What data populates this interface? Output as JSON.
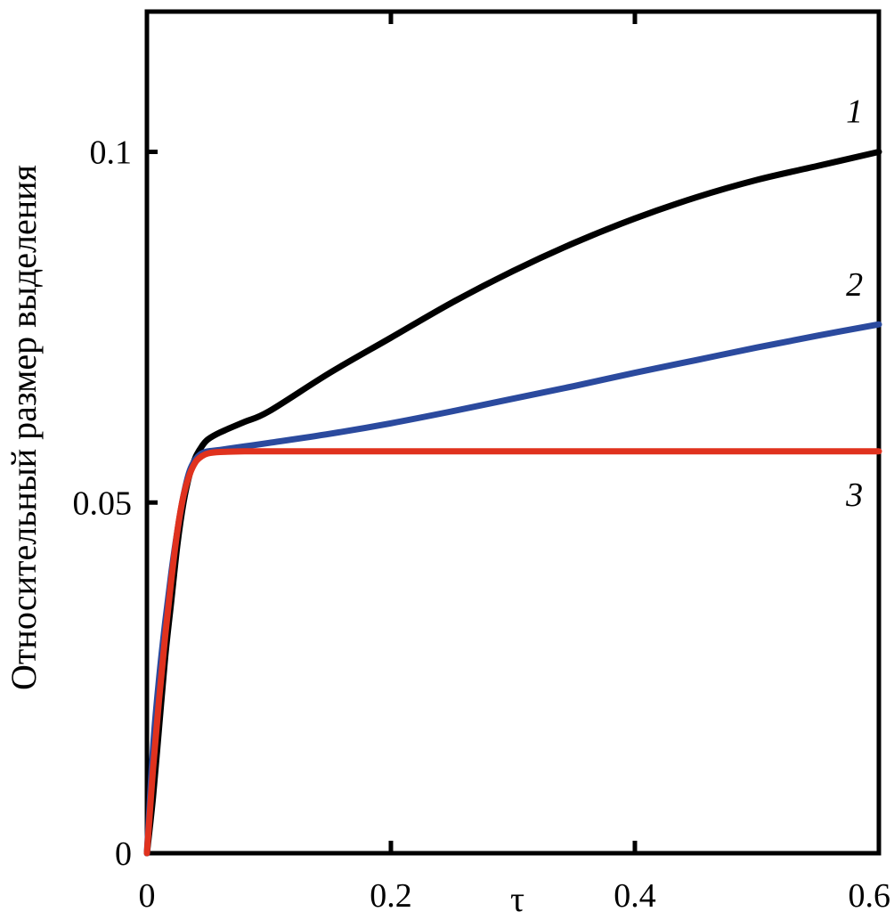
{
  "chart_data": {
    "type": "line",
    "title": "",
    "xlabel": "τ",
    "ylabel": "Относительный размер выделения",
    "xlim": [
      0,
      0.6
    ],
    "ylim": [
      0,
      0.12
    ],
    "x_ticks": [
      {
        "value": 0,
        "label": "0"
      },
      {
        "value": 0.2,
        "label": "0.2"
      },
      {
        "value": 0.4,
        "label": "0.4"
      },
      {
        "value": 0.6,
        "label": "0.6"
      }
    ],
    "y_ticks": [
      {
        "value": 0,
        "label": "0"
      },
      {
        "value": 0.05,
        "label": "0.05"
      },
      {
        "value": 0.1,
        "label": "0.1"
      }
    ],
    "grid": false,
    "legend": "none",
    "series": [
      {
        "name": "1",
        "color": "#000000",
        "label_anchor": [
          0.58,
          0.1042
        ],
        "x": [
          0,
          0.005,
          0.01,
          0.015,
          0.02,
          0.025,
          0.03,
          0.035,
          0.04,
          0.045,
          0.05,
          0.06,
          0.08,
          0.1,
          0.15,
          0.2,
          0.25,
          0.3,
          0.35,
          0.4,
          0.45,
          0.5,
          0.55,
          0.6
        ],
        "y": [
          0,
          0.008,
          0.018,
          0.028,
          0.036,
          0.044,
          0.05,
          0.054,
          0.0565,
          0.058,
          0.059,
          0.06,
          0.0615,
          0.063,
          0.0685,
          0.0735,
          0.0785,
          0.083,
          0.087,
          0.0905,
          0.0935,
          0.096,
          0.098,
          0.1
        ]
      },
      {
        "name": "2",
        "color": "#2b4a9e",
        "label_anchor": [
          0.58,
          0.0795
        ],
        "x": [
          0,
          0.005,
          0.01,
          0.015,
          0.02,
          0.025,
          0.03,
          0.035,
          0.04,
          0.045,
          0.05,
          0.06,
          0.08,
          0.1,
          0.15,
          0.2,
          0.25,
          0.3,
          0.35,
          0.4,
          0.45,
          0.5,
          0.55,
          0.6
        ],
        "y": [
          0,
          0.015,
          0.025,
          0.033,
          0.04,
          0.046,
          0.051,
          0.0545,
          0.0562,
          0.057,
          0.0573,
          0.0575,
          0.058,
          0.0585,
          0.0598,
          0.0613,
          0.063,
          0.0648,
          0.0666,
          0.0685,
          0.0703,
          0.0721,
          0.0738,
          0.0754
        ]
      },
      {
        "name": "3",
        "color": "#e0321e",
        "label_anchor": [
          0.58,
          0.0495
        ],
        "x": [
          0,
          0.005,
          0.01,
          0.015,
          0.02,
          0.025,
          0.03,
          0.035,
          0.04,
          0.045,
          0.05,
          0.06,
          0.08,
          0.1,
          0.2,
          0.3,
          0.4,
          0.5,
          0.6
        ],
        "y": [
          0,
          0.012,
          0.022,
          0.031,
          0.039,
          0.046,
          0.051,
          0.054,
          0.0558,
          0.0566,
          0.057,
          0.0572,
          0.0573,
          0.0573,
          0.0573,
          0.0573,
          0.0573,
          0.0573,
          0.0573
        ]
      }
    ]
  }
}
